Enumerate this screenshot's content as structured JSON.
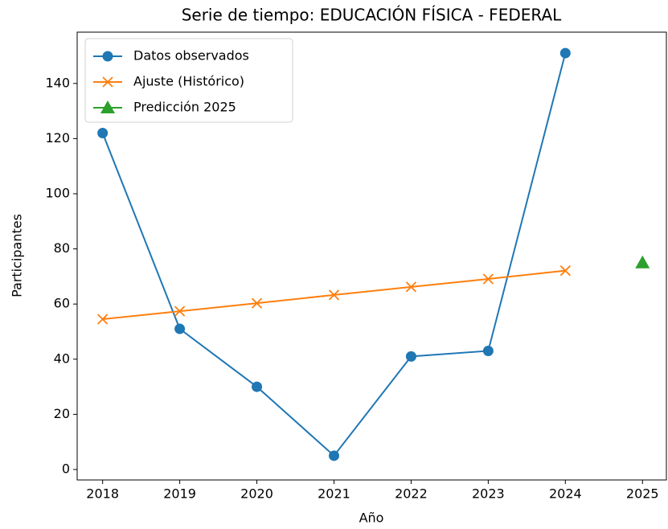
{
  "chart_data": {
    "type": "line",
    "title": "Serie de tiempo: EDUCACIÓN FÍSICA - FEDERAL",
    "xlabel": "Año",
    "ylabel": "Participantes",
    "x": [
      2018,
      2019,
      2020,
      2021,
      2022,
      2023,
      2024,
      2025
    ],
    "series": [
      {
        "name": "Datos observados",
        "color": "#1f77b4",
        "marker": "circle",
        "line": true,
        "values": [
          122,
          51,
          30,
          5,
          41,
          43,
          151,
          null
        ]
      },
      {
        "name": "Ajuste (Histórico)",
        "color": "#ff7f0e",
        "marker": "x",
        "line": true,
        "values": [
          54.5,
          57.4,
          60.3,
          63.3,
          66.2,
          69.1,
          72.1,
          null
        ]
      },
      {
        "name": "Predicción 2025",
        "color": "#2ca02c",
        "marker": "triangle",
        "line": false,
        "values": [
          null,
          null,
          null,
          null,
          null,
          null,
          null,
          75.0
        ]
      }
    ],
    "xlim": [
      2017.67,
      2025.31
    ],
    "ylim": [
      -3.8,
      158.6
    ],
    "xticks": [
      2018,
      2019,
      2020,
      2021,
      2022,
      2023,
      2024,
      2025
    ],
    "yticks": [
      0,
      20,
      40,
      60,
      80,
      100,
      120,
      140
    ],
    "grid": false,
    "legend": "upper left"
  }
}
